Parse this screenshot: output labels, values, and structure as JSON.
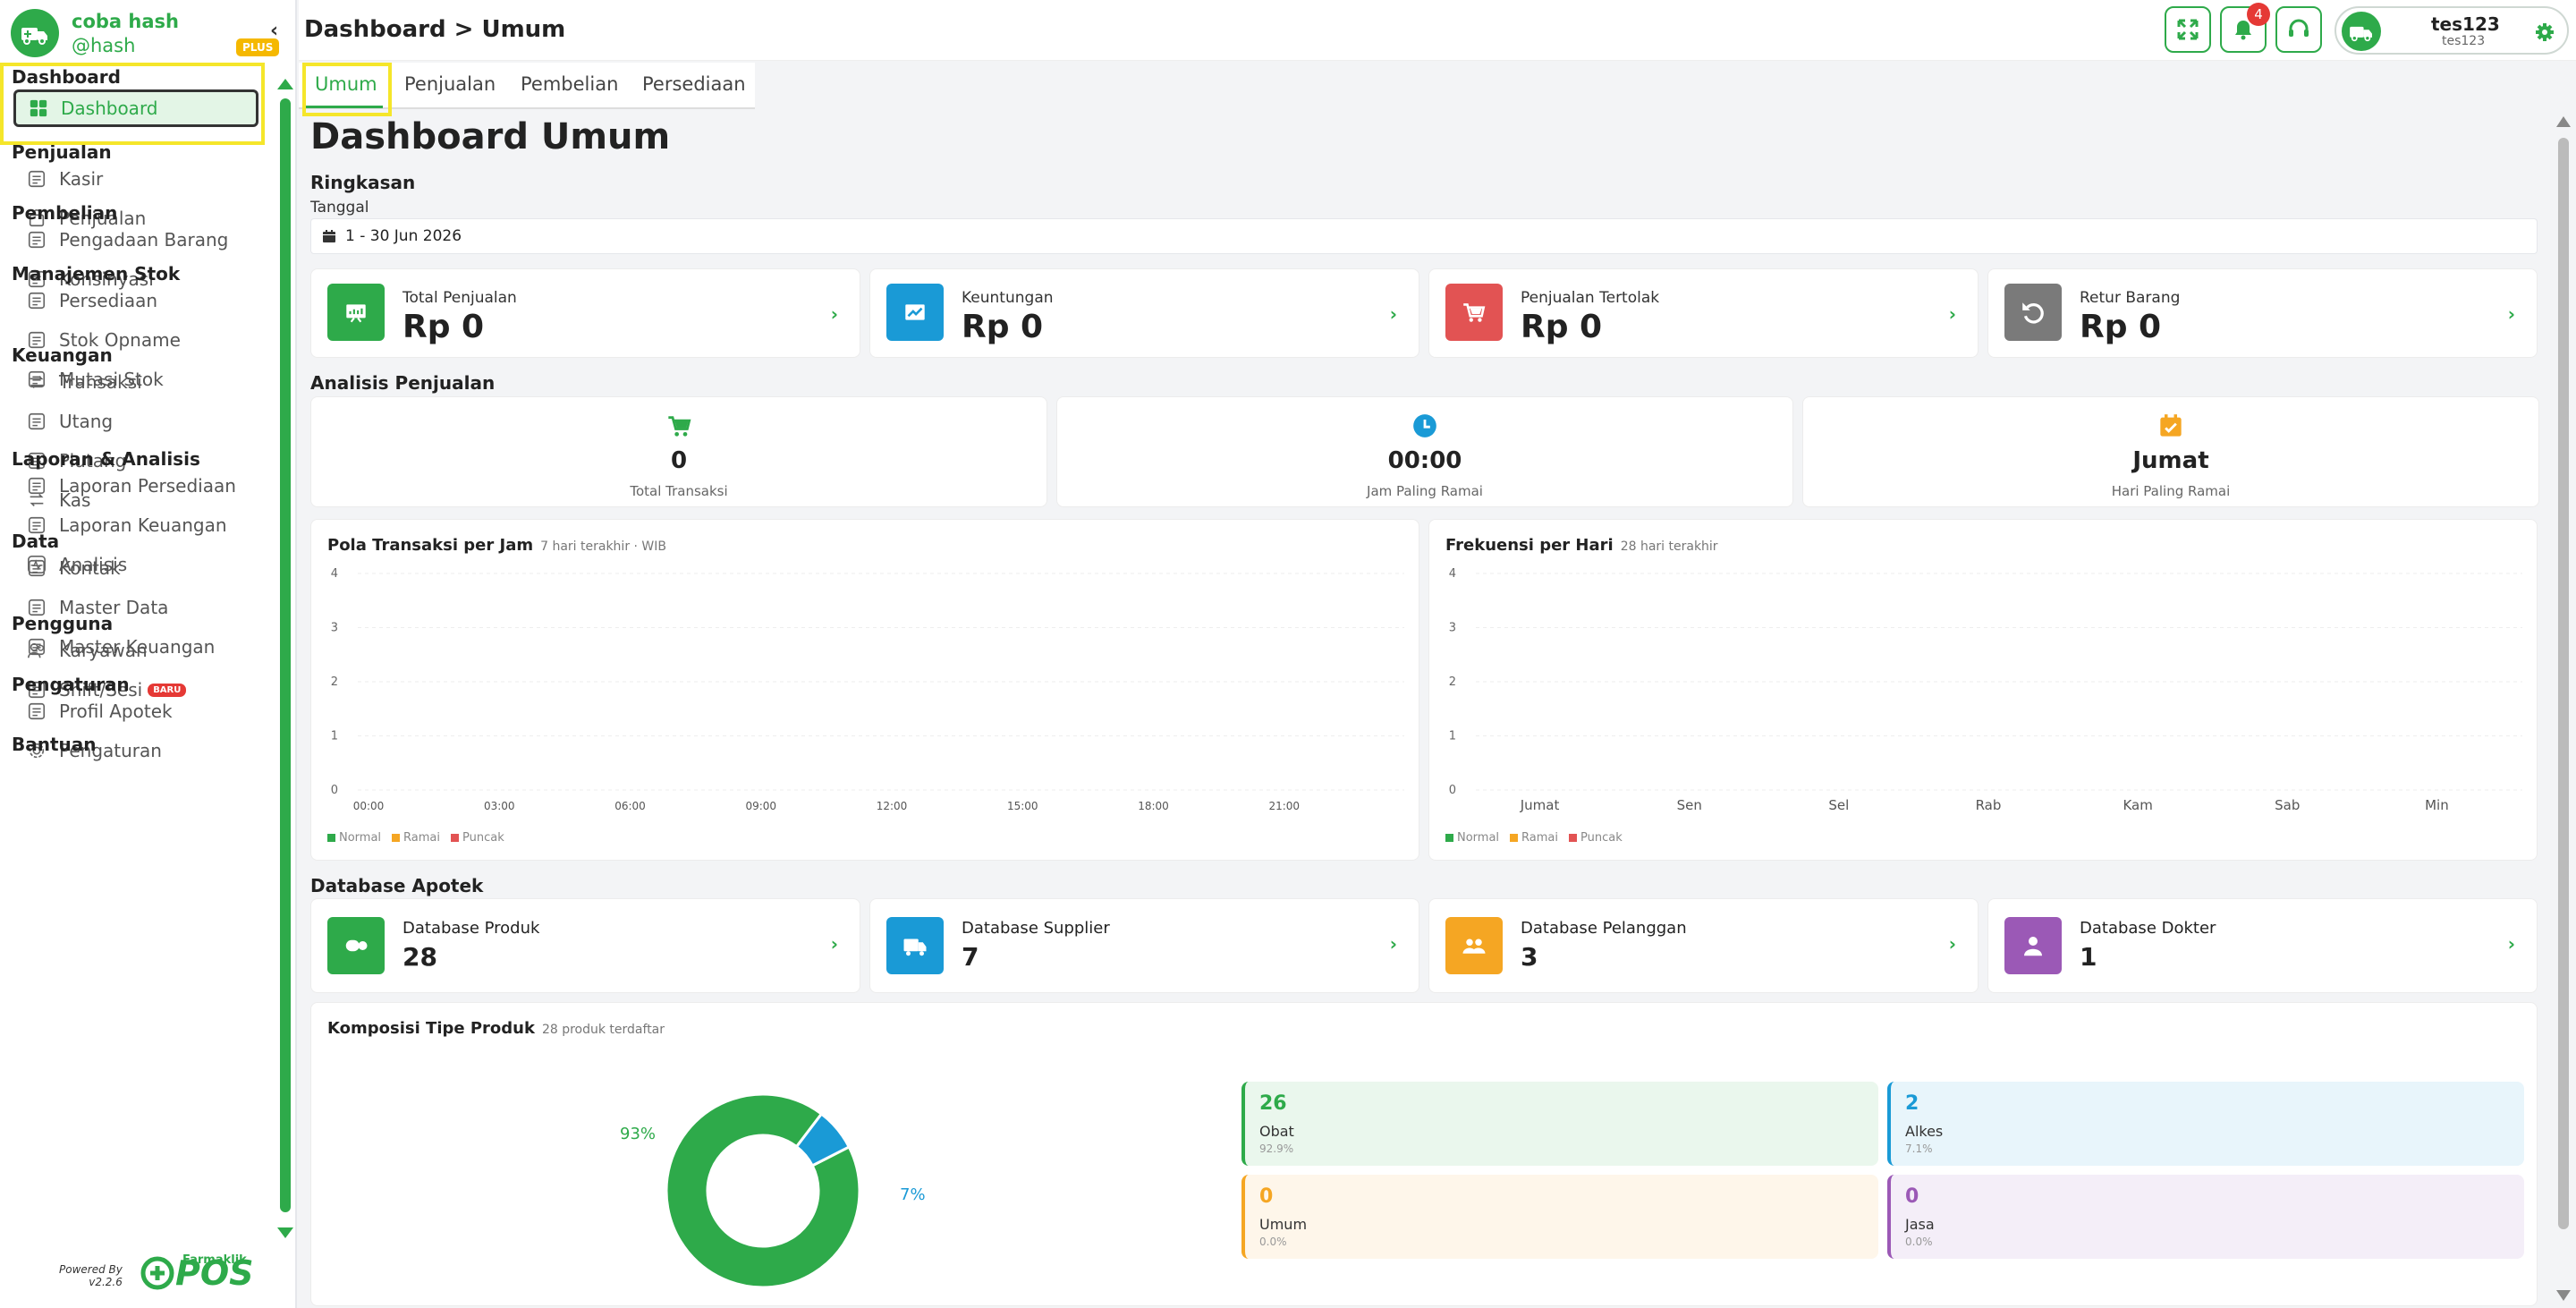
{
  "brand": {
    "name": "coba hash",
    "handle": "@hash",
    "plan": "PLUS"
  },
  "sidebar": {
    "sections": [
      {
        "title": "Dashboard",
        "items": [
          {
            "label": "Dashboard",
            "icon": "grid-icon",
            "active": true
          }
        ]
      },
      {
        "title": "Penjualan",
        "items": [
          {
            "label": "Kasir",
            "icon": "cash-register-icon"
          },
          {
            "label": "Penjualan",
            "icon": "bag-icon"
          }
        ]
      },
      {
        "title": "Pembelian",
        "items": [
          {
            "label": "Pengadaan Barang",
            "icon": "box-icon"
          },
          {
            "label": "Konsinyasi",
            "icon": "archive-icon"
          }
        ]
      },
      {
        "title": "Manajemen Stok",
        "items": [
          {
            "label": "Persediaan",
            "icon": "save-icon"
          },
          {
            "label": "Stok Opname",
            "icon": "save-icon"
          },
          {
            "label": "Mutasi Stok",
            "icon": "save-icon"
          }
        ]
      },
      {
        "title": "Keuangan",
        "items": [
          {
            "label": "Transaksi",
            "icon": "exchange-icon"
          },
          {
            "label": "Utang",
            "icon": "document-icon"
          },
          {
            "label": "Piutang",
            "icon": "document-icon"
          },
          {
            "label": "Kas",
            "icon": "exchange-icon"
          }
        ]
      },
      {
        "title": "Laporan & Analisis",
        "items": [
          {
            "label": "Laporan Persediaan",
            "icon": "clipboard-icon"
          },
          {
            "label": "Laporan Keuangan",
            "icon": "clipboard-icon"
          },
          {
            "label": "Analisis",
            "icon": "pulse-icon"
          }
        ]
      },
      {
        "title": "Data",
        "items": [
          {
            "label": "Kontak",
            "icon": "book-icon"
          },
          {
            "label": "Master Data",
            "icon": "database-icon"
          },
          {
            "label": "Master Keuangan",
            "icon": "wallet-icon"
          }
        ]
      },
      {
        "title": "Pengguna",
        "items": [
          {
            "label": "Karyawan",
            "icon": "users-icon"
          },
          {
            "label": "Shift/Sesi",
            "icon": "briefcase-icon",
            "badge": "BARU"
          }
        ]
      },
      {
        "title": "Pengaturan",
        "items": [
          {
            "label": "Profil Apotek",
            "icon": "store-icon"
          },
          {
            "label": "Pengaturan",
            "icon": "gear-icon"
          }
        ]
      },
      {
        "title": "Bantuan",
        "items": []
      }
    ],
    "powered_by": "Powered By",
    "version": "v2.2.6",
    "footer_brand": "Farmaklik",
    "footer_product": "POS"
  },
  "header": {
    "breadcrumb": "Dashboard > Umum",
    "notification_count": "4",
    "user_name": "tes123",
    "user_sub": "tes123"
  },
  "tabs": [
    "Umum",
    "Penjualan",
    "Pembelian",
    "Persediaan"
  ],
  "page": {
    "title": "Dashboard Umum",
    "summary_title": "Ringkasan",
    "date_label": "Tanggal",
    "date_value": "1 - 30 Jun 2026"
  },
  "stats": [
    {
      "label": "Total Penjualan",
      "value": "Rp 0",
      "color": "#2eaa4a",
      "icon": "chart-icon"
    },
    {
      "label": "Keuntungan",
      "value": "Rp 0",
      "color": "#1a9ad6",
      "icon": "trend-icon"
    },
    {
      "label": "Penjualan Tertolak",
      "value": "Rp 0",
      "color": "#e25353",
      "icon": "cart-icon"
    },
    {
      "label": "Retur Barang",
      "value": "Rp 0",
      "color": "#7a7a7a",
      "icon": "undo-icon"
    }
  ],
  "analysis": {
    "title": "Analisis Penjualan",
    "items": [
      {
        "value": "0",
        "label": "Total Transaksi",
        "icon": "cart-icon",
        "color": "#2eaa4a"
      },
      {
        "value": "00:00",
        "label": "Jam Paling Ramai",
        "icon": "clock-icon",
        "color": "#1a9ad6"
      },
      {
        "value": "Jumat",
        "label": "Hari Paling Ramai",
        "icon": "calendar-icon",
        "color": "#f5a623"
      }
    ]
  },
  "chart_data": [
    {
      "type": "bar",
      "title": "Pola Transaksi per Jam",
      "subtitle": "7 hari terakhir · WIB",
      "categories": [
        "00:00",
        "03:00",
        "06:00",
        "09:00",
        "12:00",
        "15:00",
        "18:00",
        "21:00"
      ],
      "series": [
        {
          "name": "Normal",
          "values": [
            0,
            0,
            0,
            0,
            0,
            0,
            0,
            0
          ]
        },
        {
          "name": "Ramai",
          "values": [
            0,
            0,
            0,
            0,
            0,
            0,
            0,
            0
          ]
        },
        {
          "name": "Puncak",
          "values": [
            0,
            0,
            0,
            0,
            0,
            0,
            0,
            0
          ]
        }
      ],
      "y_ticks": [
        "0",
        "1",
        "2",
        "3",
        "4"
      ],
      "ylim": [
        0,
        4
      ]
    },
    {
      "type": "bar",
      "title": "Frekuensi per Hari",
      "subtitle": "28 hari terakhir",
      "categories": [
        "Jumat",
        "Sen",
        "Sel",
        "Rab",
        "Kam",
        "Sab",
        "Min"
      ],
      "series": [
        {
          "name": "Normal",
          "values": [
            0,
            0,
            0,
            0,
            0,
            0,
            0
          ]
        },
        {
          "name": "Ramai",
          "values": [
            0,
            0,
            0,
            0,
            0,
            0,
            0
          ]
        },
        {
          "name": "Puncak",
          "values": [
            0,
            0,
            0,
            0,
            0,
            0,
            0
          ]
        }
      ],
      "y_ticks": [
        "0",
        "1",
        "2",
        "3",
        "4"
      ],
      "ylim": [
        0,
        4
      ]
    },
    {
      "type": "pie",
      "title": "Komposisi Tipe Produk",
      "subtitle": "28 produk terdaftar",
      "categories": [
        "Obat",
        "Alkes",
        "Umum",
        "Jasa"
      ],
      "values": [
        26,
        2,
        0,
        0
      ],
      "labels": [
        "93%",
        "7%"
      ]
    }
  ],
  "legend": {
    "normal": "Normal",
    "ramai": "Ramai",
    "puncak": "Puncak",
    "colors": {
      "normal": "#2eaa4a",
      "ramai": "#f5a623",
      "puncak": "#e25353"
    }
  },
  "database": {
    "title": "Database Apotek",
    "items": [
      {
        "label": "Database Produk",
        "value": "28",
        "color": "#2eaa4a",
        "icon": "pills-icon"
      },
      {
        "label": "Database Supplier",
        "value": "7",
        "color": "#1a9ad6",
        "icon": "truck-icon"
      },
      {
        "label": "Database Pelanggan",
        "value": "3",
        "color": "#f5a623",
        "icon": "users-icon"
      },
      {
        "label": "Database Dokter",
        "value": "1",
        "color": "#9b59b6",
        "icon": "doctor-icon"
      }
    ]
  },
  "composition": [
    {
      "value": "26",
      "label": "Obat",
      "pct": "92.9%",
      "color": "#2eaa4a",
      "bg": "#eaf7ed"
    },
    {
      "value": "2",
      "label": "Alkes",
      "pct": "7.1%",
      "color": "#1a9ad6",
      "bg": "#e8f5fb"
    },
    {
      "value": "0",
      "label": "Umum",
      "pct": "0.0%",
      "color": "#f5a623",
      "bg": "#fef6ea"
    },
    {
      "value": "0",
      "label": "Jasa",
      "pct": "0.0%",
      "color": "#9b59b6",
      "bg": "#f4eef8"
    }
  ]
}
